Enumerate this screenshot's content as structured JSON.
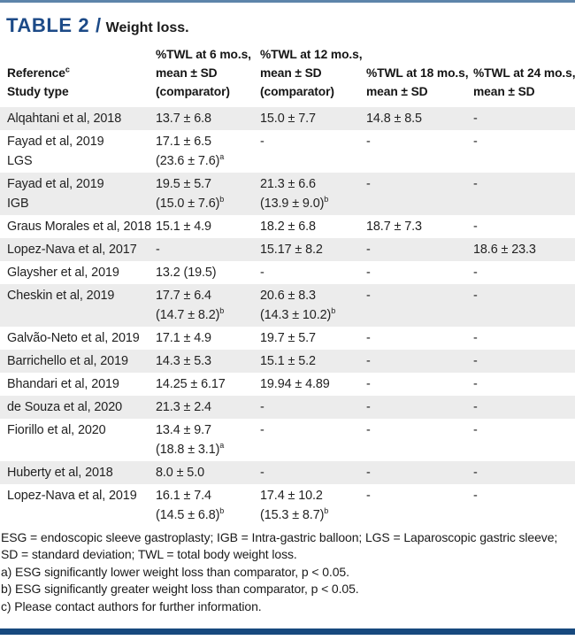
{
  "colors": {
    "accent_navy": "#1c4a87",
    "top_bar": "#5d84aa",
    "bottom_bar": "#17497e",
    "row_stripe": "#ececec"
  },
  "header": {
    "table_label": "TABLE 2 /",
    "caption": "Weight loss."
  },
  "table": {
    "columns": [
      {
        "lines": [
          {
            "t": "Reference",
            "s": "c"
          },
          {
            "t": "Study type"
          }
        ]
      },
      {
        "lines": [
          {
            "t": "%TWL at 6 mo.s,"
          },
          {
            "t": "mean ± SD"
          },
          {
            "t": "(comparator)"
          }
        ]
      },
      {
        "lines": [
          {
            "t": "%TWL at 12 mo.s,"
          },
          {
            "t": "mean ± SD"
          },
          {
            "t": "(comparator)"
          }
        ]
      },
      {
        "lines": [
          {
            "t": "%TWL at 18 mo.s,"
          },
          {
            "t": "mean ± SD"
          }
        ]
      },
      {
        "lines": [
          {
            "t": "%TWL at 24 mo.s,"
          },
          {
            "t": "mean ± SD"
          }
        ]
      }
    ],
    "rows": [
      {
        "cells": [
          [
            {
              "t": "Alqahtani et al, 2018"
            }
          ],
          [
            {
              "t": "13.7 ± 6.8"
            }
          ],
          [
            {
              "t": "15.0 ± 7.7"
            }
          ],
          [
            {
              "t": "14.8 ± 8.5"
            }
          ],
          [
            {
              "t": "-"
            }
          ]
        ]
      },
      {
        "cells": [
          [
            {
              "t": "Fayad et al, 2019"
            },
            {
              "t": "LGS"
            }
          ],
          [
            {
              "t": "17.1 ± 6.5"
            },
            {
              "t": "(23.6 ± 7.6)",
              "s": "a"
            }
          ],
          [
            {
              "t": "-"
            }
          ],
          [
            {
              "t": "-"
            }
          ],
          [
            {
              "t": "-"
            }
          ]
        ]
      },
      {
        "cells": [
          [
            {
              "t": "Fayad et al, 2019"
            },
            {
              "t": "IGB"
            }
          ],
          [
            {
              "t": "19.5 ± 5.7"
            },
            {
              "t": "(15.0 ± 7.6)",
              "s": "b"
            }
          ],
          [
            {
              "t": "21.3 ± 6.6"
            },
            {
              "t": "(13.9 ± 9.0)",
              "s": "b"
            }
          ],
          [
            {
              "t": "-"
            }
          ],
          [
            {
              "t": "-"
            }
          ]
        ]
      },
      {
        "cells": [
          [
            {
              "t": "Graus Morales et al, 2018"
            }
          ],
          [
            {
              "t": "15.1 ± 4.9"
            }
          ],
          [
            {
              "t": "18.2 ± 6.8"
            }
          ],
          [
            {
              "t": "18.7 ± 7.3"
            }
          ],
          [
            {
              "t": "-"
            }
          ]
        ]
      },
      {
        "cells": [
          [
            {
              "t": "Lopez-Nava et al, 2017"
            }
          ],
          [
            {
              "t": "-"
            }
          ],
          [
            {
              "t": "15.17 ± 8.2"
            }
          ],
          [
            {
              "t": "-"
            }
          ],
          [
            {
              "t": "18.6 ± 23.3"
            }
          ]
        ]
      },
      {
        "cells": [
          [
            {
              "t": "Glaysher et al, 2019"
            }
          ],
          [
            {
              "t": "13.2 (19.5)"
            }
          ],
          [
            {
              "t": "-"
            }
          ],
          [
            {
              "t": "-"
            }
          ],
          [
            {
              "t": "-"
            }
          ]
        ]
      },
      {
        "cells": [
          [
            {
              "t": "Cheskin et al, 2019"
            }
          ],
          [
            {
              "t": "17.7 ± 6.4"
            },
            {
              "t": "(14.7 ± 8.2)",
              "s": "b"
            }
          ],
          [
            {
              "t": "20.6 ± 8.3"
            },
            {
              "t": "(14.3 ± 10.2)",
              "s": "b"
            }
          ],
          [
            {
              "t": "-"
            }
          ],
          [
            {
              "t": "-"
            }
          ]
        ]
      },
      {
        "cells": [
          [
            {
              "t": "Galvão-Neto et al, 2019"
            }
          ],
          [
            {
              "t": "17.1 ± 4.9"
            }
          ],
          [
            {
              "t": "19.7 ± 5.7"
            }
          ],
          [
            {
              "t": "-"
            }
          ],
          [
            {
              "t": "-"
            }
          ]
        ]
      },
      {
        "cells": [
          [
            {
              "t": "Barrichello et al, 2019"
            }
          ],
          [
            {
              "t": "14.3 ± 5.3"
            }
          ],
          [
            {
              "t": "15.1 ± 5.2"
            }
          ],
          [
            {
              "t": "-"
            }
          ],
          [
            {
              "t": "-"
            }
          ]
        ]
      },
      {
        "cells": [
          [
            {
              "t": "Bhandari et al, 2019"
            }
          ],
          [
            {
              "t": "14.25 ± 6.17"
            }
          ],
          [
            {
              "t": "19.94 ± 4.89"
            }
          ],
          [
            {
              "t": "-"
            }
          ],
          [
            {
              "t": "-"
            }
          ]
        ]
      },
      {
        "cells": [
          [
            {
              "t": "de Souza et al, 2020"
            }
          ],
          [
            {
              "t": "21.3 ± 2.4"
            }
          ],
          [
            {
              "t": "-"
            }
          ],
          [
            {
              "t": "-"
            }
          ],
          [
            {
              "t": "-"
            }
          ]
        ]
      },
      {
        "cells": [
          [
            {
              "t": "Fiorillo et al, 2020"
            }
          ],
          [
            {
              "t": "13.4 ± 9.7"
            },
            {
              "t": "(18.8 ± 3.1)",
              "s": "a"
            }
          ],
          [
            {
              "t": "-"
            }
          ],
          [
            {
              "t": "-"
            }
          ],
          [
            {
              "t": "-"
            }
          ]
        ]
      },
      {
        "cells": [
          [
            {
              "t": "Huberty et al, 2018"
            }
          ],
          [
            {
              "t": "8.0 ± 5.0"
            }
          ],
          [
            {
              "t": "-"
            }
          ],
          [
            {
              "t": "-"
            }
          ],
          [
            {
              "t": "-"
            }
          ]
        ]
      },
      {
        "cells": [
          [
            {
              "t": "Lopez-Nava et al, 2019"
            }
          ],
          [
            {
              "t": "16.1 ± 7.4"
            },
            {
              "t": "(14.5 ± 6.8)",
              "s": "b"
            }
          ],
          [
            {
              "t": "17.4 ± 10.2"
            },
            {
              "t": "(15.3 ± 8.7)",
              "s": "b"
            }
          ],
          [
            {
              "t": "-"
            }
          ],
          [
            {
              "t": "-"
            }
          ]
        ]
      }
    ]
  },
  "footnotes": [
    "ESG = endoscopic sleeve gastroplasty; IGB = Intra-gastric balloon; LGS = Laparoscopic gastric sleeve;",
    "SD = standard deviation; TWL = total body weight loss.",
    "a) ESG significantly lower weight loss than comparator, p < 0.05.",
    "b) ESG significantly greater weight loss than comparator, p < 0.05.",
    "c) Please contact authors for further information."
  ]
}
